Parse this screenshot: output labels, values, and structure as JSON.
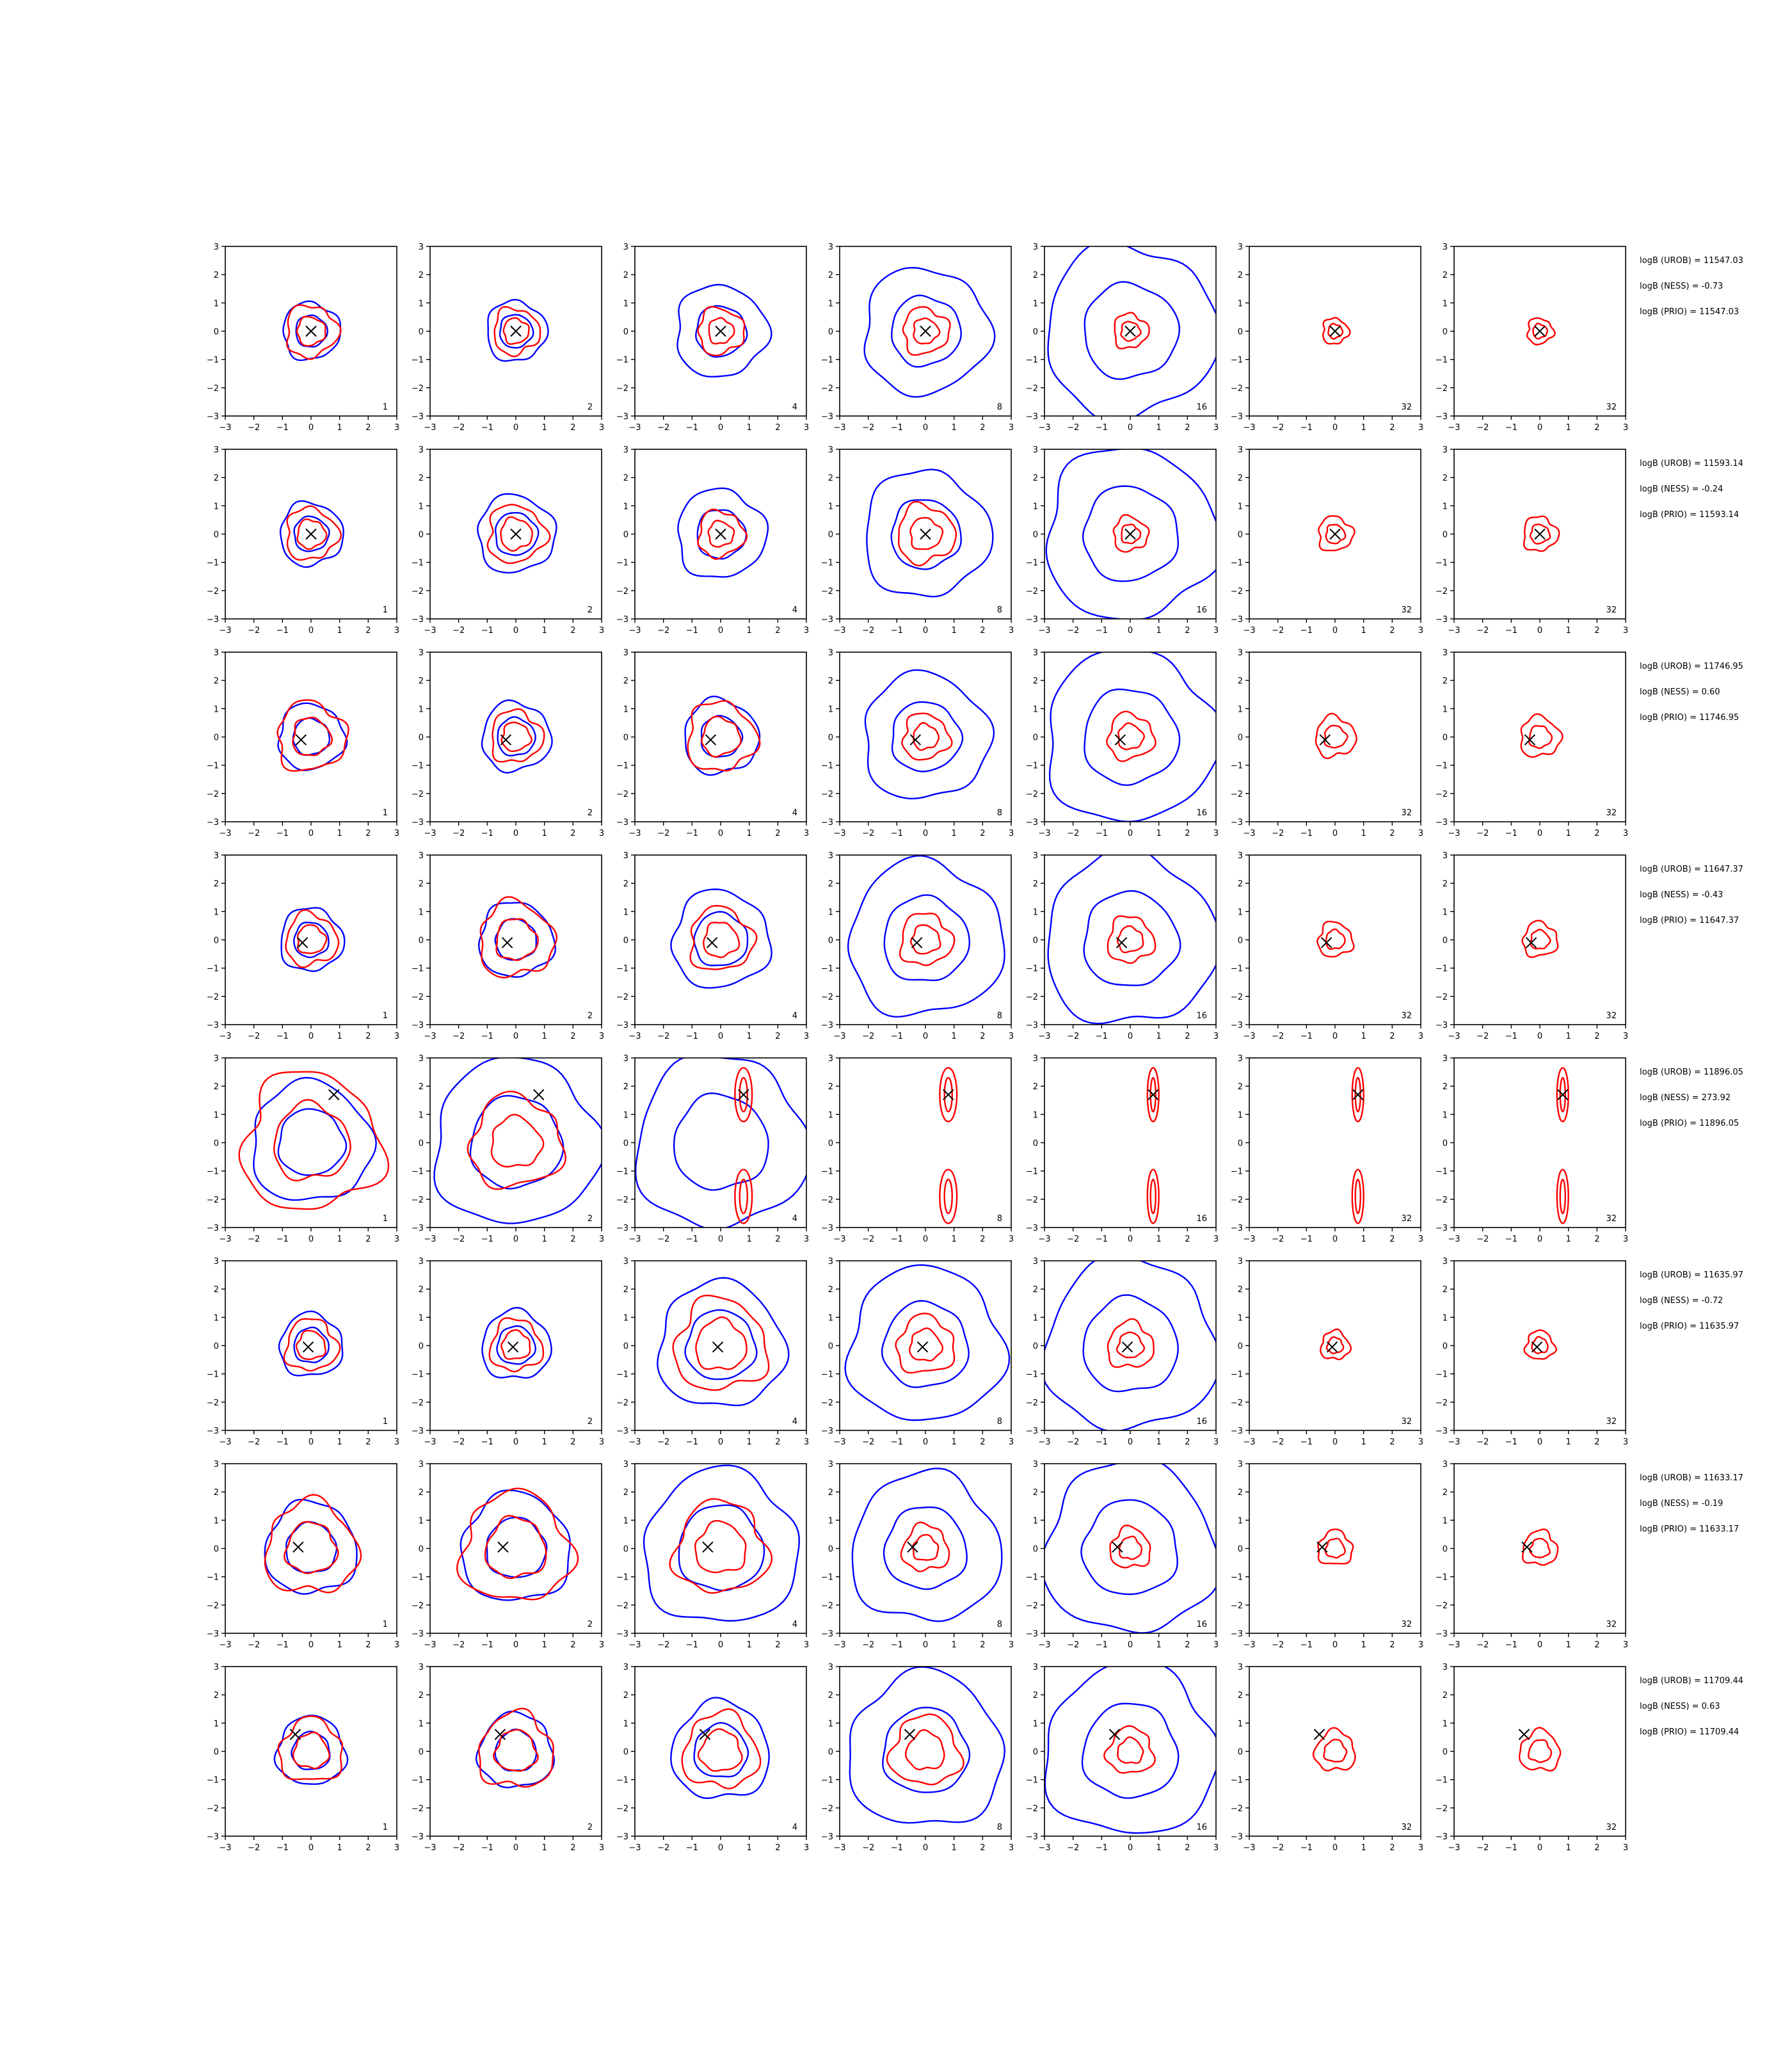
{
  "chart_data": {
    "type": "contour-grid",
    "rows": 8,
    "cols": 7,
    "xlim": [
      -3,
      3
    ],
    "ylim": [
      -3,
      3
    ],
    "x_ticks": [
      "−3",
      "−2",
      "−1",
      "0",
      "1",
      "2",
      "3"
    ],
    "y_ticks": [
      "−3",
      "−2",
      "−1",
      "0",
      "1",
      "2",
      "3"
    ],
    "tick_values": [
      -3,
      -2,
      -1,
      0,
      1,
      2,
      3
    ],
    "panel_labels": [
      "1",
      "2",
      "4",
      "8",
      "16",
      "32",
      "32"
    ],
    "colors": {
      "outer": "#0000ff",
      "inner": "#ff0000",
      "marker": "#000000"
    },
    "rows_data": [
      {
        "marker": [
          0.0,
          0.0
        ],
        "annotations": [
          "logB (UROB) = 11547.03",
          "logB (NESS) = -0.73",
          "logB (PRIO) = 11547.03"
        ],
        "outer_extent": [
          1.0,
          1.05,
          1.6,
          2.2,
          3.0,
          0,
          0
        ],
        "inner_extent": [
          0.9,
          0.8,
          0.8,
          0.8,
          0.6,
          0.45,
          0.45
        ]
      },
      {
        "marker": [
          0.0,
          0.0
        ],
        "annotations": [
          "logB (UROB) = 11593.14",
          "logB (NESS) = -0.24",
          "logB (PRIO) = 11593.14"
        ],
        "outer_extent": [
          1.1,
          1.35,
          1.55,
          2.2,
          3.0,
          0,
          0
        ],
        "inner_extent": [
          0.9,
          1.0,
          0.8,
          1.0,
          0.6,
          0.6,
          0.6
        ]
      },
      {
        "marker": [
          -0.35,
          -0.1
        ],
        "annotations": [
          "logB (UROB) = 11746.95",
          "logB (NESS) = 0.60",
          "logB (PRIO) = 11746.95"
        ],
        "outer_extent": [
          1.15,
          1.2,
          1.3,
          2.2,
          3.0,
          0,
          0
        ],
        "inner_extent": [
          1.2,
          0.9,
          1.2,
          0.8,
          0.8,
          0.7,
          0.7
        ]
      },
      {
        "marker": [
          -0.3,
          -0.1
        ],
        "annotations": [
          "logB (UROB) = 11647.37",
          "logB (NESS) = -0.43",
          "logB (PRIO) = 11647.37"
        ],
        "outer_extent": [
          1.1,
          1.3,
          1.7,
          2.7,
          3.0,
          0,
          0
        ],
        "inner_extent": [
          0.9,
          1.3,
          1.1,
          0.9,
          0.8,
          0.6,
          0.6
        ]
      },
      {
        "marker": [
          0.8,
          1.7
        ],
        "annotations": [
          "logB (UROB) = 11896.05",
          "logB (NESS) = 273.92",
          "logB (PRIO) = 11896.05"
        ],
        "outer_extent": [
          2.1,
          2.9,
          3.0,
          0,
          0,
          0,
          0
        ],
        "inner_extent": [
          2.4,
          1.6,
          0.3,
          0.3,
          0.2,
          0.2,
          0.2
        ]
      },
      {
        "marker": [
          -0.1,
          -0.05
        ],
        "annotations": [
          "logB (UROB) = 11635.97",
          "logB (NESS) = -0.72",
          "logB (PRIO) = 11635.97"
        ],
        "outer_extent": [
          1.1,
          1.2,
          2.2,
          2.7,
          3.0,
          0,
          0
        ],
        "inner_extent": [
          0.9,
          0.9,
          1.6,
          1.0,
          0.8,
          0.5,
          0.5
        ]
      },
      {
        "marker": [
          -0.45,
          0.05
        ],
        "annotations": [
          "logB (UROB) = 11633.17",
          "logB (NESS) = -0.19",
          "logB (PRIO) = 11633.17"
        ],
        "outer_extent": [
          1.6,
          1.9,
          2.7,
          2.6,
          3.0,
          0,
          0
        ],
        "inner_extent": [
          1.6,
          1.9,
          1.6,
          0.8,
          0.7,
          0.6,
          0.6
        ]
      },
      {
        "marker": [
          -0.55,
          0.6
        ],
        "annotations": [
          "logB (UROB) = 11709.44",
          "logB (NESS) = 0.63",
          "logB (PRIO) = 11709.44"
        ],
        "outer_extent": [
          1.2,
          1.3,
          1.7,
          2.7,
          3.0,
          0,
          0
        ],
        "inner_extent": [
          1.1,
          1.3,
          1.3,
          1.2,
          0.8,
          0.7,
          0.7
        ]
      }
    ]
  }
}
